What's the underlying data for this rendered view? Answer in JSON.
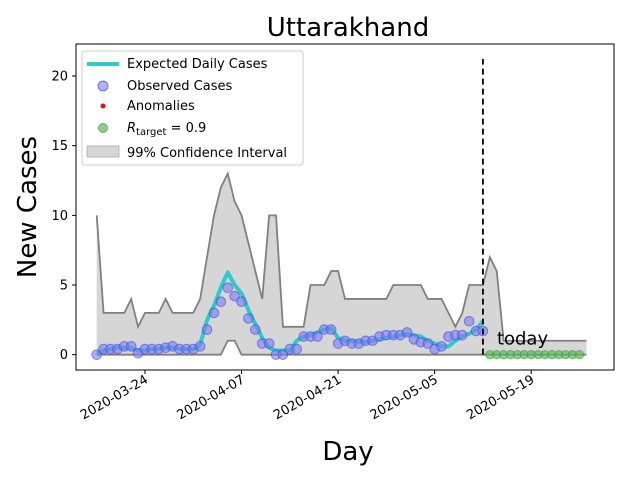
{
  "chart_data": {
    "type": "line",
    "title": "Uttarakhand",
    "xlabel": "Day",
    "ylabel": "New Cases",
    "ylim": [
      -1.1,
      22.3
    ],
    "xlim": [
      "2020-03-14",
      "2020-05-31"
    ],
    "yticks": [
      0,
      5,
      10,
      15,
      20
    ],
    "xticks": [
      "2020-03-24",
      "2020-04-07",
      "2020-04-21",
      "2020-05-05",
      "2020-05-19"
    ],
    "grid": false,
    "legend_position": "top-left",
    "today": {
      "date": "2020-05-12",
      "label": "today"
    },
    "series": [
      {
        "name": "Expected Daily Cases",
        "kind": "line",
        "color": "#2ec9c9",
        "x": [
          "2020-03-17",
          "2020-03-18",
          "2020-03-19",
          "2020-03-20",
          "2020-03-21",
          "2020-03-22",
          "2020-03-23",
          "2020-03-24",
          "2020-03-25",
          "2020-03-26",
          "2020-03-27",
          "2020-03-28",
          "2020-03-29",
          "2020-03-30",
          "2020-03-31",
          "2020-04-01",
          "2020-04-02",
          "2020-04-03",
          "2020-04-04",
          "2020-04-05",
          "2020-04-06",
          "2020-04-07",
          "2020-04-08",
          "2020-04-09",
          "2020-04-10",
          "2020-04-11",
          "2020-04-12",
          "2020-04-13",
          "2020-04-14",
          "2020-04-15",
          "2020-04-16",
          "2020-04-17",
          "2020-04-18",
          "2020-04-19",
          "2020-04-20",
          "2020-04-21",
          "2020-04-22",
          "2020-04-23",
          "2020-04-24",
          "2020-04-25",
          "2020-04-26",
          "2020-04-27",
          "2020-04-28",
          "2020-04-29",
          "2020-04-30",
          "2020-05-01",
          "2020-05-02",
          "2020-05-03",
          "2020-05-04",
          "2020-05-05",
          "2020-05-06",
          "2020-05-07",
          "2020-05-08",
          "2020-05-09",
          "2020-05-10",
          "2020-05-11",
          "2020-05-12"
        ],
        "y": [
          0.1,
          0.3,
          0.4,
          0.5,
          0.5,
          0.5,
          0.3,
          0.3,
          0.4,
          0.4,
          0.5,
          0.5,
          0.4,
          0.4,
          0.4,
          0.7,
          2.5,
          3.5,
          4.8,
          5.9,
          5.0,
          4.4,
          3.2,
          2.2,
          1.2,
          0.5,
          0.3,
          0.3,
          0.3,
          1.0,
          1.3,
          1.4,
          1.6,
          1.8,
          1.9,
          1.2,
          1.0,
          1.0,
          0.9,
          0.9,
          1.0,
          1.1,
          1.2,
          1.3,
          1.4,
          1.5,
          1.4,
          1.3,
          1.0,
          0.8,
          0.6,
          0.6,
          1.0,
          1.3,
          1.5,
          1.8,
          2.4
        ]
      },
      {
        "name": "Observed Cases",
        "kind": "markers",
        "color": "#7b7bf5",
        "x": [
          "2020-03-17",
          "2020-03-18",
          "2020-03-19",
          "2020-03-20",
          "2020-03-21",
          "2020-03-22",
          "2020-03-23",
          "2020-03-24",
          "2020-03-25",
          "2020-03-26",
          "2020-03-27",
          "2020-03-28",
          "2020-03-29",
          "2020-03-30",
          "2020-03-31",
          "2020-04-01",
          "2020-04-02",
          "2020-04-03",
          "2020-04-04",
          "2020-04-05",
          "2020-04-06",
          "2020-04-07",
          "2020-04-08",
          "2020-04-09",
          "2020-04-10",
          "2020-04-11",
          "2020-04-12",
          "2020-04-13",
          "2020-04-14",
          "2020-04-15",
          "2020-04-16",
          "2020-04-17",
          "2020-04-18",
          "2020-04-19",
          "2020-04-20",
          "2020-04-21",
          "2020-04-22",
          "2020-04-23",
          "2020-04-24",
          "2020-04-25",
          "2020-04-26",
          "2020-04-27",
          "2020-04-28",
          "2020-04-29",
          "2020-04-30",
          "2020-05-01",
          "2020-05-02",
          "2020-05-03",
          "2020-05-04",
          "2020-05-05",
          "2020-05-06",
          "2020-05-07",
          "2020-05-08",
          "2020-05-09",
          "2020-05-10",
          "2020-05-11",
          "2020-05-12"
        ],
        "y": [
          0,
          0.4,
          0.4,
          0.4,
          0.6,
          0.6,
          0.1,
          0.4,
          0.4,
          0.4,
          0.5,
          0.6,
          0.4,
          0.4,
          0.4,
          0.6,
          1.8,
          3.0,
          3.8,
          4.8,
          4.2,
          3.8,
          2.6,
          1.8,
          0.8,
          0.8,
          0,
          0,
          0.4,
          0.4,
          1.3,
          1.3,
          1.3,
          1.8,
          1.8,
          0.8,
          1.0,
          0.8,
          0.8,
          1.0,
          1.0,
          1.3,
          1.4,
          1.4,
          1.4,
          1.6,
          1.1,
          0.9,
          0.8,
          0.4,
          0.6,
          1.3,
          1.4,
          1.4,
          2.4,
          1.7,
          1.7
        ]
      },
      {
        "name": "Anomalies",
        "kind": "markers",
        "color": "#ee1111",
        "x": [],
        "y": []
      },
      {
        "name": "$R_{\\mathrm{target}} = 0.9$",
        "kind": "markers",
        "color": "#5cb85c",
        "x": [
          "2020-05-13",
          "2020-05-14",
          "2020-05-15",
          "2020-05-16",
          "2020-05-17",
          "2020-05-18",
          "2020-05-19",
          "2020-05-20",
          "2020-05-21",
          "2020-05-22",
          "2020-05-23",
          "2020-05-24",
          "2020-05-25",
          "2020-05-26"
        ],
        "y": [
          0,
          0,
          0,
          0,
          0,
          0,
          0,
          0,
          0,
          0,
          0,
          0,
          0,
          0
        ]
      },
      {
        "name": "99% Confidence Interval",
        "kind": "band",
        "color": "#d6d6d6",
        "x": [
          "2020-03-17",
          "2020-03-18",
          "2020-03-19",
          "2020-03-20",
          "2020-03-21",
          "2020-03-22",
          "2020-03-23",
          "2020-03-24",
          "2020-03-25",
          "2020-03-26",
          "2020-03-27",
          "2020-03-28",
          "2020-03-29",
          "2020-03-30",
          "2020-03-31",
          "2020-04-01",
          "2020-04-02",
          "2020-04-03",
          "2020-04-04",
          "2020-04-05",
          "2020-04-06",
          "2020-04-07",
          "2020-04-08",
          "2020-04-09",
          "2020-04-10",
          "2020-04-11",
          "2020-04-12",
          "2020-04-13",
          "2020-04-14",
          "2020-04-15",
          "2020-04-16",
          "2020-04-17",
          "2020-04-18",
          "2020-04-19",
          "2020-04-20",
          "2020-04-21",
          "2020-04-22",
          "2020-04-23",
          "2020-04-24",
          "2020-04-25",
          "2020-04-26",
          "2020-04-27",
          "2020-04-28",
          "2020-04-29",
          "2020-04-30",
          "2020-05-01",
          "2020-05-02",
          "2020-05-03",
          "2020-05-04",
          "2020-05-05",
          "2020-05-06",
          "2020-05-07",
          "2020-05-08",
          "2020-05-09",
          "2020-05-10",
          "2020-05-11",
          "2020-05-12",
          "2020-05-13",
          "2020-05-14",
          "2020-05-15",
          "2020-05-16",
          "2020-05-17",
          "2020-05-18",
          "2020-05-19",
          "2020-05-20",
          "2020-05-21",
          "2020-05-22",
          "2020-05-23",
          "2020-05-24",
          "2020-05-25",
          "2020-05-26",
          "2020-05-27"
        ],
        "upper": [
          10,
          3,
          3,
          3,
          3,
          4,
          2,
          3,
          3,
          3,
          4,
          3,
          3,
          3,
          3,
          4,
          7,
          10,
          12,
          13,
          11,
          10,
          8,
          6,
          4,
          10,
          10,
          2,
          2,
          2,
          2,
          5,
          5,
          5,
          6,
          6,
          4,
          4,
          4,
          4,
          4,
          4,
          4,
          5,
          5,
          5,
          5,
          5,
          4,
          4,
          4,
          3,
          2,
          3,
          5,
          5,
          5,
          7,
          6,
          1,
          1,
          1,
          1,
          1,
          1,
          1,
          1,
          1,
          1,
          1,
          1,
          1
        ],
        "lower": [
          0,
          0,
          0,
          0,
          0,
          0,
          0,
          0,
          0,
          0,
          0,
          0,
          0,
          0,
          0,
          0,
          0,
          0,
          0,
          1,
          1,
          0,
          0,
          0,
          0,
          0,
          0,
          0,
          0,
          0,
          0,
          0,
          0,
          0,
          0,
          0,
          0,
          0,
          0,
          0,
          0,
          0,
          0,
          0,
          0,
          0,
          0,
          0,
          0,
          0,
          0,
          0,
          0,
          0,
          0,
          0,
          0,
          0,
          0,
          0,
          0,
          0,
          0,
          0,
          0,
          0,
          0,
          0,
          0,
          0,
          0,
          0
        ]
      }
    ]
  }
}
